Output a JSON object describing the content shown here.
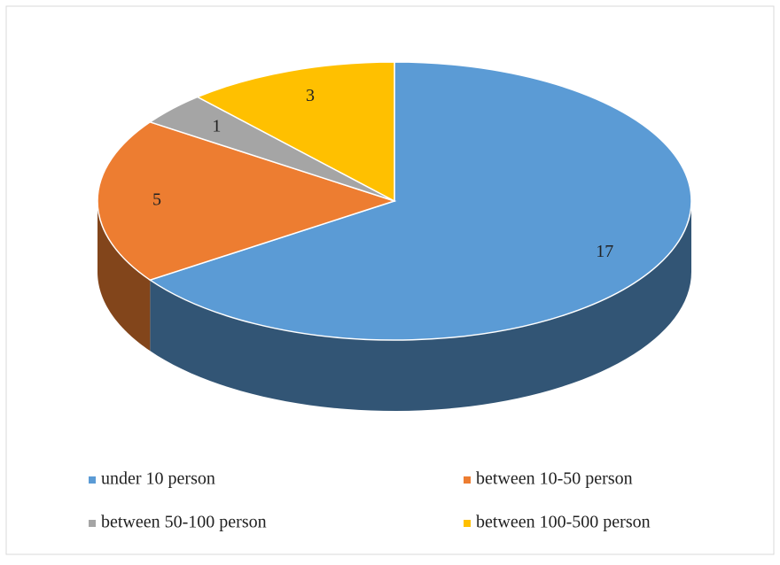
{
  "chart_data": {
    "type": "pie3d",
    "categories": [
      "under 10 person",
      "between 10-50 person",
      "between 50-100 person",
      "between 100-500 person"
    ],
    "values": [
      17,
      5,
      1,
      3
    ],
    "colors": [
      "#5b9bd5",
      "#ed7d31",
      "#a5a5a5",
      "#ffc000"
    ]
  }
}
